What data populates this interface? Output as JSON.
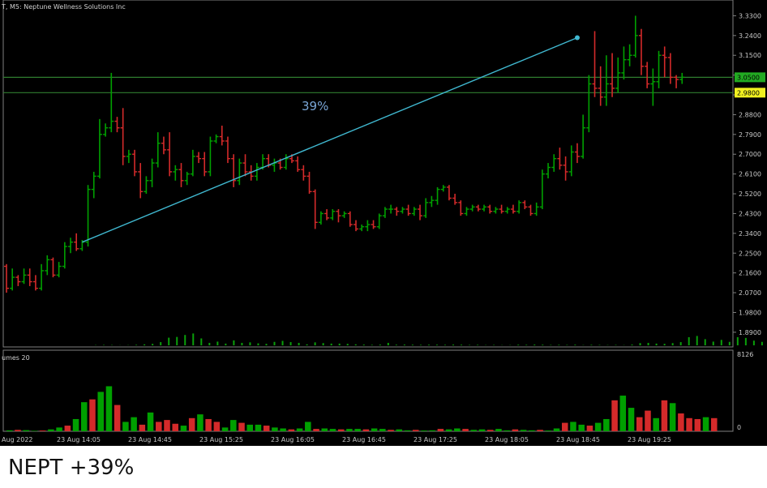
{
  "caption": "NEPT +39%",
  "chart_data": {
    "type": "bar",
    "title": "T, M5:  Neptune Wellness Solutions Inc",
    "subplot_label": "umes 20",
    "annotation": "39%",
    "colors": {
      "up": "#00a000",
      "down": "#d42a2a",
      "trendline": "#40b8d0",
      "hline": "#2f7d2f",
      "background": "#000000",
      "text": "#c8c8c8"
    },
    "y_ticks": [
      "3.3300",
      "3.2400",
      "3.1500",
      "3.0600",
      "2.9700",
      "2.8800",
      "2.7900",
      "2.7000",
      "2.6100",
      "2.5200",
      "2.4300",
      "2.3400",
      "2.2500",
      "2.1600",
      "2.0700",
      "1.9800",
      "1.8900"
    ],
    "ylim": [
      1.86,
      3.35
    ],
    "volume_ticks": [
      "8126",
      "0"
    ],
    "volume_max": 8126,
    "x_ticks": [
      "Aug 2022",
      "23 Aug 14:05",
      "23 Aug 14:45",
      "23 Aug 15:25",
      "23 Aug 16:05",
      "23 Aug 16:45",
      "23 Aug 17:25",
      "23 Aug 18:05",
      "23 Aug 18:45",
      "23 Aug 19:25"
    ],
    "price_labels": [
      {
        "label": "3.0500",
        "value": 3.05,
        "bg": "#22aa22"
      },
      {
        "label": "2.9800",
        "value": 2.98,
        "bg": "#f0f020"
      }
    ],
    "hlines": [
      3.05,
      2.98
    ],
    "trendline": {
      "from": [
        13,
        2.3
      ],
      "to": [
        98,
        3.23
      ]
    },
    "volumes": [
      100,
      150,
      120,
      50,
      80,
      200,
      400,
      600,
      1300,
      3100,
      3400,
      4200,
      4800,
      2800,
      1000,
      1500,
      700,
      2000,
      1000,
      1200,
      800,
      600,
      1400,
      1800,
      1300,
      1000,
      400,
      1200,
      900,
      700,
      700,
      600,
      400,
      300,
      200,
      300,
      1000,
      250,
      300,
      250,
      200,
      250,
      250,
      200,
      300,
      250,
      150,
      200,
      100,
      150,
      80,
      100,
      250,
      200,
      300,
      250,
      150,
      200,
      150,
      250,
      100,
      200,
      150,
      100,
      150,
      80,
      300,
      900,
      1000,
      700,
      600,
      900,
      1300,
      3300,
      3800,
      2500,
      1500,
      2200,
      1400,
      3300,
      3000,
      1900,
      1400,
      1300,
      1500,
      1400
    ],
    "ohlc": [
      [
        2.19,
        2.2,
        2.07,
        2.09
      ],
      [
        2.09,
        2.18,
        2.08,
        2.14
      ],
      [
        2.14,
        2.15,
        2.1,
        2.12
      ],
      [
        2.12,
        2.18,
        2.11,
        2.15
      ],
      [
        2.15,
        2.18,
        2.1,
        2.12
      ],
      [
        2.12,
        2.15,
        2.08,
        2.09
      ],
      [
        2.09,
        2.2,
        2.08,
        2.17
      ],
      [
        2.17,
        2.24,
        2.15,
        2.22
      ],
      [
        2.22,
        2.23,
        2.14,
        2.15
      ],
      [
        2.15,
        2.21,
        2.14,
        2.19
      ],
      [
        2.19,
        2.3,
        2.18,
        2.28
      ],
      [
        2.28,
        2.32,
        2.25,
        2.3
      ],
      [
        2.3,
        2.34,
        2.26,
        2.27
      ],
      [
        2.27,
        2.31,
        2.26,
        2.3
      ],
      [
        2.3,
        2.56,
        2.28,
        2.54
      ],
      [
        2.54,
        2.62,
        2.5,
        2.6
      ],
      [
        2.6,
        2.86,
        2.59,
        2.79
      ],
      [
        2.79,
        2.84,
        2.78,
        2.82
      ],
      [
        2.82,
        3.07,
        2.8,
        2.85
      ],
      [
        2.85,
        2.87,
        2.8,
        2.82
      ],
      [
        2.82,
        2.91,
        2.65,
        2.69
      ],
      [
        2.69,
        2.72,
        2.66,
        2.7
      ],
      [
        2.7,
        2.72,
        2.6,
        2.62
      ],
      [
        2.62,
        2.66,
        2.5,
        2.53
      ],
      [
        2.53,
        2.6,
        2.52,
        2.58
      ],
      [
        2.58,
        2.68,
        2.55,
        2.66
      ],
      [
        2.66,
        2.8,
        2.64,
        2.75
      ],
      [
        2.75,
        2.78,
        2.7,
        2.72
      ],
      [
        2.72,
        2.8,
        2.6,
        2.62
      ],
      [
        2.62,
        2.65,
        2.58,
        2.63
      ],
      [
        2.63,
        2.66,
        2.55,
        2.58
      ],
      [
        2.58,
        2.62,
        2.56,
        2.61
      ],
      [
        2.61,
        2.72,
        2.6,
        2.69
      ],
      [
        2.69,
        2.71,
        2.66,
        2.68
      ],
      [
        2.68,
        2.71,
        2.6,
        2.62
      ],
      [
        2.62,
        2.78,
        2.6,
        2.76
      ],
      [
        2.76,
        2.79,
        2.75,
        2.78
      ],
      [
        2.78,
        2.83,
        2.74,
        2.76
      ],
      [
        2.76,
        2.78,
        2.66,
        2.68
      ],
      [
        2.68,
        2.7,
        2.55,
        2.58
      ],
      [
        2.58,
        2.68,
        2.56,
        2.66
      ],
      [
        2.66,
        2.7,
        2.6,
        2.62
      ],
      [
        2.62,
        2.65,
        2.58,
        2.6
      ],
      [
        2.6,
        2.66,
        2.58,
        2.64
      ],
      [
        2.64,
        2.7,
        2.63,
        2.68
      ],
      [
        2.68,
        2.7,
        2.64,
        2.65
      ],
      [
        2.65,
        2.68,
        2.62,
        2.66
      ],
      [
        2.66,
        2.68,
        2.63,
        2.64
      ],
      [
        2.64,
        2.7,
        2.63,
        2.68
      ],
      [
        2.68,
        2.7,
        2.66,
        2.67
      ],
      [
        2.67,
        2.69,
        2.62,
        2.63
      ],
      [
        2.63,
        2.65,
        2.58,
        2.6
      ],
      [
        2.6,
        2.62,
        2.52,
        2.53
      ],
      [
        2.53,
        2.54,
        2.36,
        2.39
      ],
      [
        2.39,
        2.44,
        2.38,
        2.43
      ],
      [
        2.43,
        2.45,
        2.4,
        2.41
      ],
      [
        2.41,
        2.45,
        2.4,
        2.44
      ],
      [
        2.44,
        2.45,
        2.39,
        2.42
      ],
      [
        2.42,
        2.44,
        2.41,
        2.43
      ],
      [
        2.43,
        2.44,
        2.37,
        2.38
      ],
      [
        2.38,
        2.4,
        2.35,
        2.36
      ],
      [
        2.36,
        2.38,
        2.35,
        2.37
      ],
      [
        2.37,
        2.4,
        2.35,
        2.38
      ],
      [
        2.38,
        2.4,
        2.36,
        2.37
      ],
      [
        2.37,
        2.43,
        2.36,
        2.42
      ],
      [
        2.42,
        2.46,
        2.41,
        2.45
      ],
      [
        2.45,
        2.47,
        2.43,
        2.45
      ],
      [
        2.45,
        2.46,
        2.42,
        2.44
      ],
      [
        2.44,
        2.46,
        2.43,
        2.45
      ],
      [
        2.45,
        2.47,
        2.42,
        2.43
      ],
      [
        2.43,
        2.46,
        2.42,
        2.45
      ],
      [
        2.45,
        2.47,
        2.4,
        2.42
      ],
      [
        2.42,
        2.5,
        2.41,
        2.48
      ],
      [
        2.48,
        2.51,
        2.46,
        2.49
      ],
      [
        2.49,
        2.55,
        2.47,
        2.54
      ],
      [
        2.54,
        2.56,
        2.53,
        2.55
      ],
      [
        2.55,
        2.56,
        2.49,
        2.5
      ],
      [
        2.5,
        2.52,
        2.47,
        2.48
      ],
      [
        2.48,
        2.49,
        2.42,
        2.43
      ],
      [
        2.43,
        2.46,
        2.42,
        2.45
      ],
      [
        2.45,
        2.47,
        2.44,
        2.46
      ],
      [
        2.46,
        2.47,
        2.44,
        2.45
      ],
      [
        2.45,
        2.47,
        2.44,
        2.46
      ],
      [
        2.46,
        2.47,
        2.43,
        2.44
      ],
      [
        2.44,
        2.46,
        2.43,
        2.45
      ],
      [
        2.45,
        2.47,
        2.43,
        2.44
      ]
    ],
    "ohlc_tail": [
      [
        2.44,
        2.46,
        2.43,
        2.45
      ],
      [
        2.45,
        2.47,
        2.43,
        2.44
      ],
      [
        2.44,
        2.49,
        2.43,
        2.48
      ],
      [
        2.48,
        2.49,
        2.45,
        2.46
      ],
      [
        2.46,
        2.47,
        2.42,
        2.43
      ],
      [
        2.43,
        2.48,
        2.42,
        2.46
      ],
      [
        2.46,
        2.63,
        2.45,
        2.61
      ],
      [
        2.61,
        2.66,
        2.59,
        2.64
      ],
      [
        2.64,
        2.7,
        2.62,
        2.68
      ],
      [
        2.68,
        2.73,
        2.63,
        2.65
      ],
      [
        2.65,
        2.69,
        2.58,
        2.62
      ],
      [
        2.62,
        2.74,
        2.6,
        2.71
      ],
      [
        2.71,
        2.75,
        2.66,
        2.69
      ],
      [
        2.69,
        2.88,
        2.68,
        2.82
      ],
      [
        2.82,
        3.06,
        2.8,
        3.02
      ],
      [
        3.02,
        3.26,
        2.96,
        3.0
      ],
      [
        3.0,
        3.1,
        2.92,
        2.96
      ],
      [
        2.96,
        3.15,
        2.92,
        3.02
      ],
      [
        3.02,
        3.16,
        2.96,
        3.0
      ],
      [
        3.0,
        3.14,
        2.98,
        3.07
      ],
      [
        3.07,
        3.19,
        3.04,
        3.13
      ],
      [
        3.13,
        3.2,
        3.1,
        3.15
      ],
      [
        3.15,
        3.33,
        3.14,
        3.24
      ],
      [
        3.24,
        3.27,
        3.06,
        3.1
      ],
      [
        3.1,
        3.12,
        3.0,
        3.02
      ],
      [
        3.02,
        3.09,
        2.92,
        3.03
      ],
      [
        3.03,
        3.17,
        3.0,
        3.15
      ],
      [
        3.15,
        3.19,
        3.05,
        3.14
      ],
      [
        3.14,
        3.16,
        3.02,
        3.05
      ],
      [
        3.05,
        3.06,
        3.0,
        3.04
      ],
      [
        3.04,
        3.07,
        3.02,
        3.05
      ]
    ]
  }
}
